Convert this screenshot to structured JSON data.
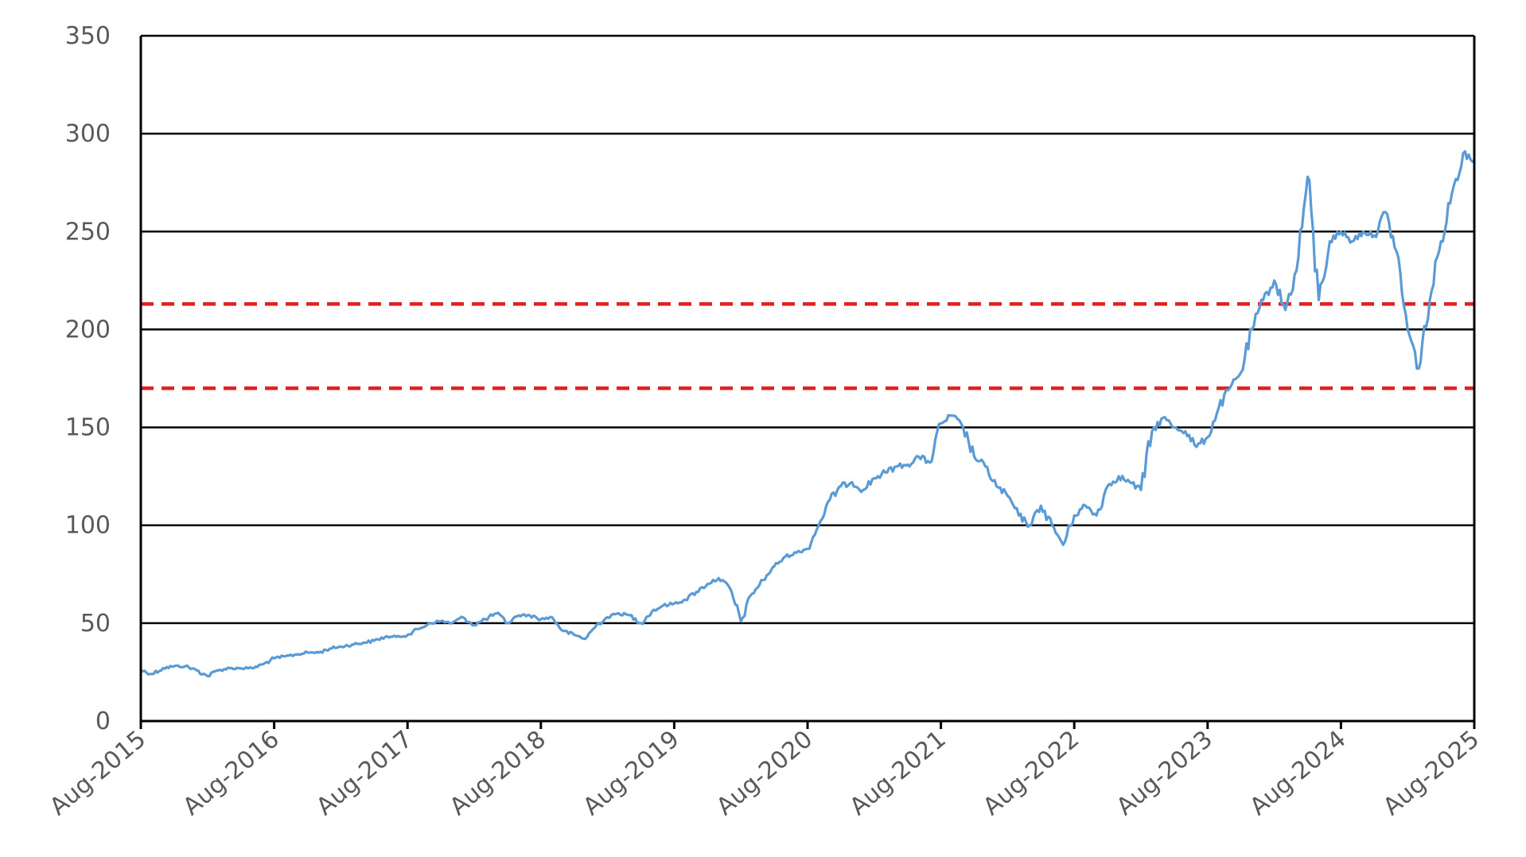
{
  "chart_data": {
    "type": "line",
    "title": "",
    "xlabel": "",
    "ylabel": "",
    "ylim": [
      0,
      350
    ],
    "xlim": [
      "2015-08",
      "2025-08"
    ],
    "grid": true,
    "yticks": [
      "0",
      "50",
      "100",
      "150",
      "200",
      "250",
      "300",
      "350"
    ],
    "xticks": [
      "Aug-2015",
      "Aug-2016",
      "Aug-2017",
      "Aug-2018",
      "Aug-2019",
      "Aug-2020",
      "Aug-2021",
      "Aug-2022",
      "Aug-2023",
      "Aug-2024",
      "Aug-2025"
    ],
    "reference_lines": [
      213,
      170
    ],
    "colors": {
      "series": "#5b9bd5",
      "reference": "#e02020",
      "grid": "#000000",
      "tick_text": "#595959"
    },
    "series": [
      {
        "x": [
          "2015-08",
          "2015-09",
          "2015-10",
          "2015-11",
          "2015-12",
          "2016-01",
          "2016-02",
          "2016-03",
          "2016-04",
          "2016-05",
          "2016-06",
          "2016-07",
          "2016-08",
          "2016-09",
          "2016-10",
          "2016-11",
          "2016-12",
          "2017-01",
          "2017-02",
          "2017-03",
          "2017-04",
          "2017-05",
          "2017-06",
          "2017-07",
          "2017-08",
          "2017-09",
          "2017-10",
          "2017-11",
          "2017-12",
          "2018-01",
          "2018-02",
          "2018-03",
          "2018-04",
          "2018-05",
          "2018-06",
          "2018-07",
          "2018-08",
          "2018-09",
          "2018-10",
          "2018-11",
          "2018-12",
          "2019-01",
          "2019-02",
          "2019-03",
          "2019-04",
          "2019-05",
          "2019-06",
          "2019-07",
          "2019-08",
          "2019-09",
          "2019-10",
          "2019-11",
          "2019-12",
          "2020-01",
          "2020-02",
          "2020-03",
          "2020-04",
          "2020-05",
          "2020-06",
          "2020-07",
          "2020-08",
          "2020-09",
          "2020-10",
          "2020-11",
          "2020-12",
          "2021-01",
          "2021-02",
          "2021-03",
          "2021-04",
          "2021-05",
          "2021-06",
          "2021-07",
          "2021-08",
          "2021-09",
          "2021-10",
          "2021-11",
          "2021-12",
          "2022-01",
          "2022-02",
          "2022-03",
          "2022-04",
          "2022-05",
          "2022-06",
          "2022-07",
          "2022-08",
          "2022-09",
          "2022-10",
          "2022-11",
          "2022-12",
          "2023-01",
          "2023-02",
          "2023-03",
          "2023-04",
          "2023-05",
          "2023-06",
          "2023-07",
          "2023-08",
          "2023-09",
          "2023-10",
          "2023-11",
          "2023-12",
          "2024-01",
          "2024-02",
          "2024-03",
          "2024-04",
          "2024-05",
          "2024-06",
          "2024-07",
          "2024-08",
          "2024-09",
          "2024-10",
          "2024-11",
          "2024-12",
          "2025-01",
          "2025-02",
          "2025-03",
          "2025-04",
          "2025-05",
          "2025-06",
          "2025-07",
          "2025-08"
        ],
        "values": [
          26,
          24,
          27,
          28,
          28,
          26,
          23,
          26,
          27,
          27,
          27,
          29,
          32,
          33,
          34,
          35,
          35,
          37,
          38,
          39,
          40,
          41,
          43,
          43,
          44,
          47,
          50,
          51,
          50,
          53,
          49,
          52,
          55,
          50,
          54,
          54,
          52,
          53,
          46,
          44,
          42,
          49,
          53,
          55,
          54,
          50,
          56,
          59,
          60,
          62,
          66,
          70,
          73,
          68,
          51,
          65,
          72,
          79,
          84,
          86,
          88,
          100,
          113,
          120,
          122,
          118,
          124,
          127,
          130,
          131,
          135,
          132,
          152,
          156,
          150,
          135,
          130,
          120,
          115,
          105,
          100,
          110,
          100,
          90,
          105,
          110,
          105,
          120,
          125,
          122,
          118,
          148,
          155,
          150,
          148,
          140,
          145,
          160,
          170,
          178,
          200,
          215,
          225,
          210,
          230,
          278,
          215,
          245,
          250,
          245,
          250,
          248,
          260,
          240,
          200,
          180,
          215,
          245,
          270,
          290,
          286
        ]
      }
    ]
  }
}
